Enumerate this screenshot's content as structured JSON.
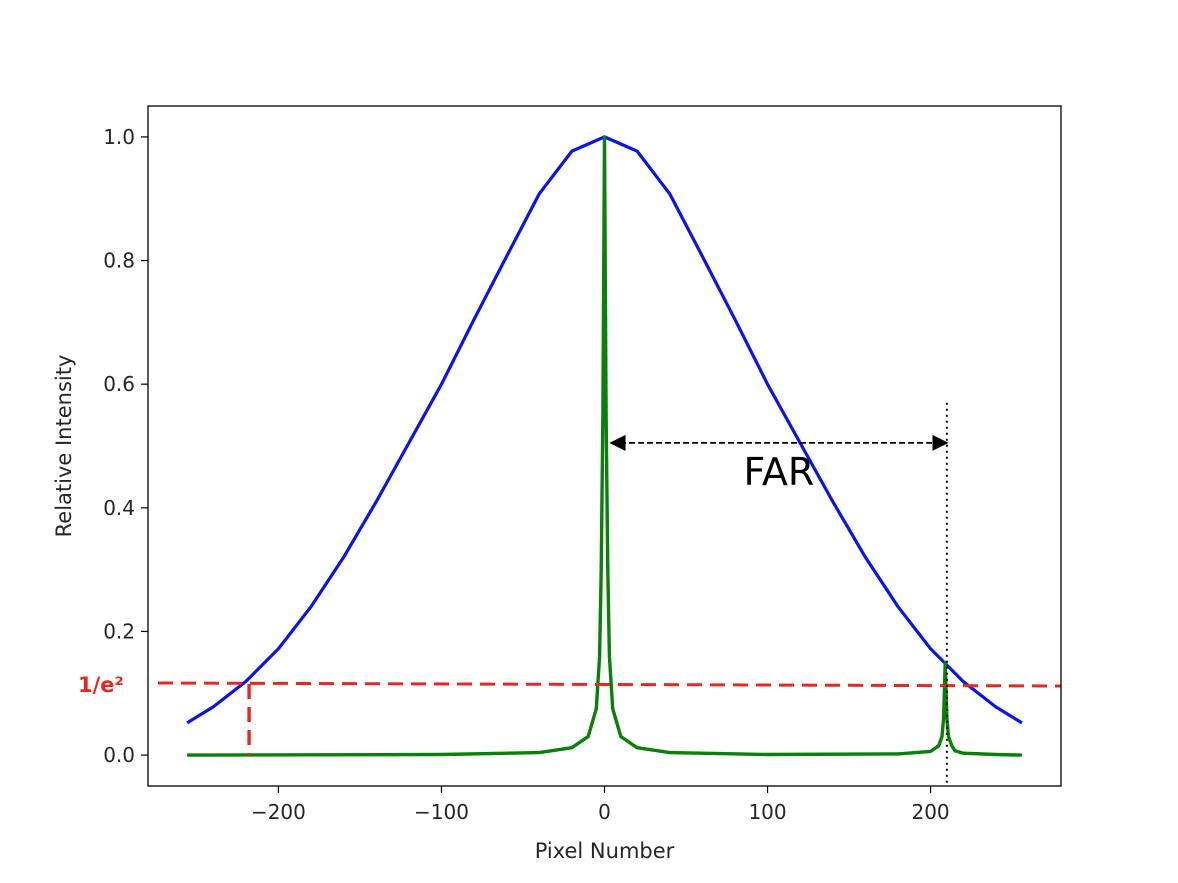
{
  "chart_data": {
    "type": "line",
    "title": "",
    "xlabel": "Pixel Number",
    "ylabel": "Relative Intensity",
    "xlim": [
      -280,
      280
    ],
    "ylim": [
      -0.05,
      1.05
    ],
    "x_ticks": [
      -200,
      -100,
      0,
      100,
      200
    ],
    "x_tick_labels": [
      "−200",
      "−100",
      "0",
      "100",
      "200"
    ],
    "y_ticks": [
      0.0,
      0.2,
      0.4,
      0.6,
      0.8,
      1.0
    ],
    "y_tick_labels": [
      "0.0",
      "0.2",
      "0.4",
      "0.6",
      "0.8",
      "1.0"
    ],
    "grid": false,
    "legend": "none",
    "series": [
      {
        "color": "#0a14e6",
        "x": [
          -256,
          -240,
          -220,
          -200,
          -180,
          -160,
          -140,
          -120,
          -100,
          -80,
          -60,
          -40,
          -20,
          0,
          20,
          40,
          60,
          80,
          100,
          120,
          140,
          160,
          180,
          200,
          220,
          240,
          256
        ],
        "y": [
          0.052,
          0.078,
          0.119,
          0.172,
          0.24,
          0.32,
          0.41,
          0.505,
          0.6,
          0.705,
          0.807,
          0.908,
          0.977,
          1.0,
          0.977,
          0.908,
          0.807,
          0.705,
          0.6,
          0.505,
          0.41,
          0.32,
          0.24,
          0.172,
          0.119,
          0.078,
          0.052
        ]
      },
      {
        "color": "#0a800a",
        "x": [
          -256,
          -100,
          -40,
          -20,
          -10,
          -5,
          -3,
          -2,
          -1,
          0,
          1,
          2,
          3,
          5,
          10,
          20,
          40,
          100,
          180,
          200,
          205,
          207,
          208,
          209,
          210,
          211,
          213,
          215,
          220,
          240,
          256
        ],
        "y": [
          0.0,
          0.001,
          0.004,
          0.012,
          0.03,
          0.075,
          0.16,
          0.3,
          0.55,
          1.0,
          0.55,
          0.3,
          0.16,
          0.075,
          0.03,
          0.012,
          0.004,
          0.001,
          0.002,
          0.006,
          0.015,
          0.03,
          0.06,
          0.15,
          0.06,
          0.03,
          0.015,
          0.007,
          0.003,
          0.001,
          0.0
        ]
      }
    ],
    "annotations": {
      "threshold_label": "1/e²",
      "threshold_value": 0.115,
      "threshold_color": "#e8281e",
      "threshold_drop_x": -218,
      "far_label": "FAR",
      "far_arrow": {
        "x_start": 4,
        "x_end": 210,
        "y": 0.505
      },
      "far_marker_x": 210
    }
  }
}
